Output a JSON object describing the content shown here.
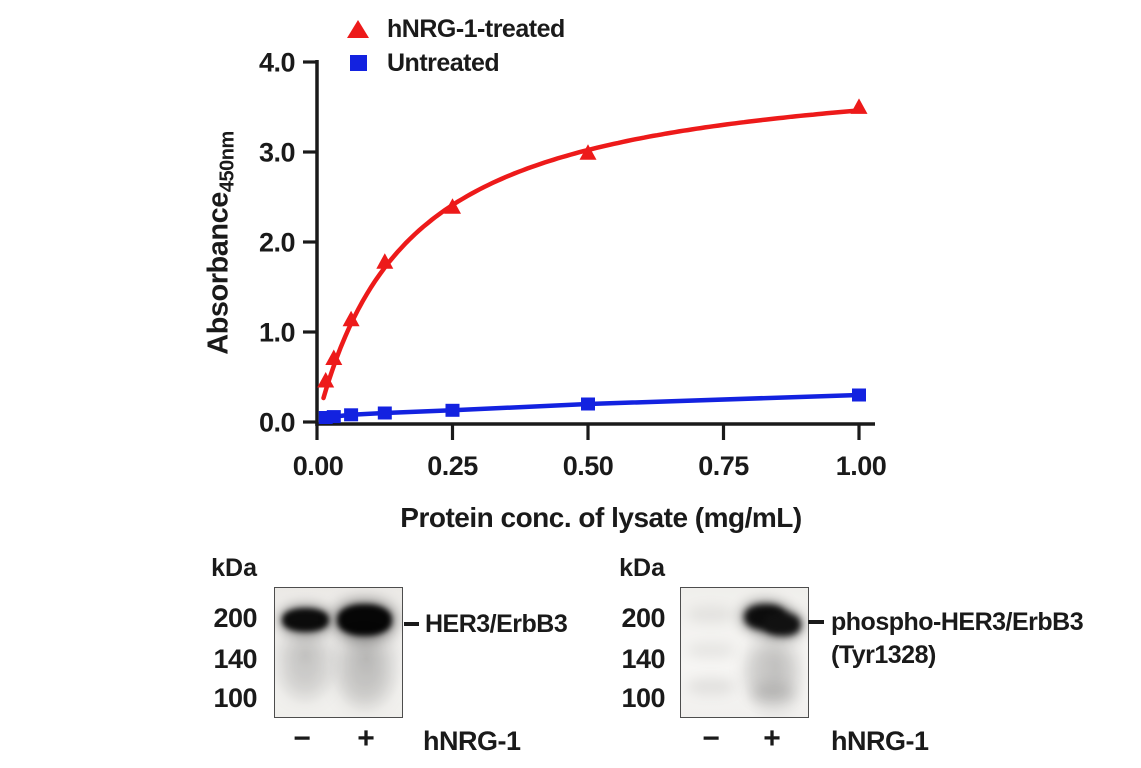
{
  "colors": {
    "treated_red": "#ed1a1a",
    "untreated_blue": "#1322e0",
    "axis_black": "#1a1a1a"
  },
  "chart_data": {
    "type": "scatter",
    "title": "",
    "xlabel": "Protein conc. of lysate (mg/mL)",
    "ylabel": "Absorbance",
    "ylabel_subscript": "450nm",
    "xlim": [
      0,
      1.0
    ],
    "ylim": [
      0,
      4.0
    ],
    "x_tick_values": [
      0,
      0.25,
      0.5,
      0.75,
      1.0
    ],
    "x_tick_labels": [
      "0.00",
      "0.25",
      "0.50",
      "0.75",
      "1.00"
    ],
    "y_tick_values": [
      0,
      1,
      2,
      3,
      4
    ],
    "y_tick_labels": [
      "0.0",
      "1.0",
      "2.0",
      "3.0",
      "4.0"
    ],
    "grid": false,
    "legend_position": "top-left above plot",
    "series": [
      {
        "name": "hNRG-1-treated",
        "color": "#ed1a1a",
        "marker": "triangle",
        "line_shape": "hyperbolic-saturation",
        "x": [
          0.016,
          0.031,
          0.063,
          0.125,
          0.25,
          0.5,
          1.0
        ],
        "y": [
          0.45,
          0.7,
          1.13,
          1.77,
          2.38,
          2.98,
          3.49
        ]
      },
      {
        "name": "Untreated",
        "color": "#1322e0",
        "marker": "square",
        "line_shape": "linear",
        "x": [
          0.016,
          0.031,
          0.063,
          0.125,
          0.25,
          0.5,
          1.0
        ],
        "y": [
          0.05,
          0.06,
          0.08,
          0.1,
          0.13,
          0.2,
          0.3
        ]
      }
    ]
  },
  "blots": {
    "left": {
      "kda_header": "kDa",
      "markers": [
        "200",
        "140",
        "100"
      ],
      "band_label": "HER3/ErbB3",
      "lane_signs": [
        "−",
        "+"
      ],
      "treatment_label": "hNRG-1"
    },
    "right": {
      "kda_header": "kDa",
      "markers": [
        "200",
        "140",
        "100"
      ],
      "band_label_line1": "phospho-HER3/ErbB3",
      "band_label_line2": "(Tyr1328)",
      "lane_signs": [
        "−",
        "+"
      ],
      "treatment_label": "hNRG-1"
    }
  }
}
